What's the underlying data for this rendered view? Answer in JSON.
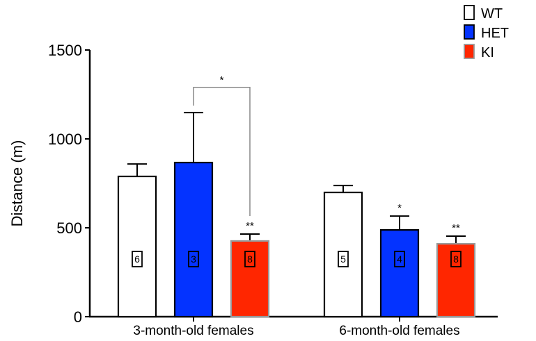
{
  "chart_data": {
    "type": "bar",
    "title": "",
    "xlabel": "",
    "ylabel": "Distance (m)",
    "ylim": [
      0,
      1500
    ],
    "yticks": [
      0,
      500,
      1000,
      1500
    ],
    "yticklabels": [
      "0",
      "500",
      "1000",
      "1500"
    ],
    "grid": false,
    "legend_position": "top-right",
    "categories": [
      "3-month-old females",
      "6-month-old females"
    ],
    "series": [
      {
        "name": "WT",
        "color": "#ffffff",
        "stroke": "#000000",
        "values": [
          789,
          699
        ],
        "error": [
          70,
          39
        ],
        "n": [
          "6",
          "5"
        ],
        "annotations": [
          "",
          ""
        ]
      },
      {
        "name": "HET",
        "color": "#0433ff",
        "stroke": "#000000",
        "values": [
          867,
          488
        ],
        "error": [
          281,
          78
        ],
        "n": [
          "3",
          "4"
        ],
        "annotations": [
          "",
          "*"
        ]
      },
      {
        "name": "KI",
        "color": "#ff2600",
        "stroke": "#999999",
        "values": [
          426,
          410
        ],
        "error": [
          39,
          43
        ],
        "n": [
          "8",
          "8"
        ],
        "annotations": [
          "**",
          "**"
        ]
      }
    ],
    "comparisons": [
      {
        "category": "3-month-old females",
        "from": "HET",
        "to": "KI",
        "label": "*",
        "bracket_level": 1290
      }
    ]
  }
}
